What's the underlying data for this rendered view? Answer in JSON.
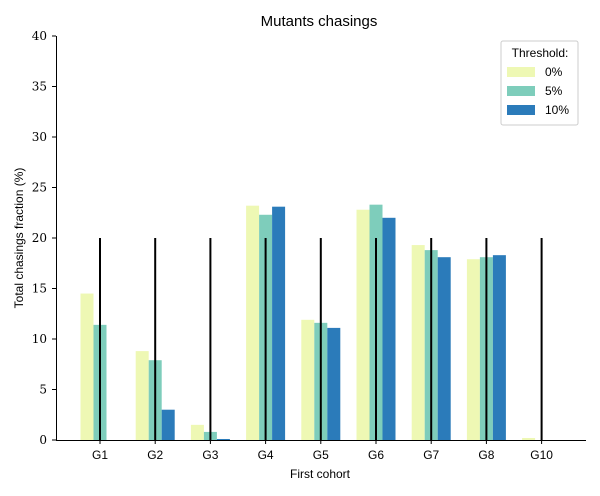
{
  "chart_data": {
    "type": "bar",
    "title": "Mutants chasings",
    "xlabel": "First cohort",
    "ylabel": "Total chasings fraction (%)",
    "ylim": [
      0,
      40
    ],
    "yticks": [
      "0",
      "5",
      "10",
      "15",
      "20",
      "25",
      "30",
      "35",
      "40"
    ],
    "categories": [
      "G1",
      "G2",
      "G3",
      "G4",
      "G5",
      "G6",
      "G7",
      "G8",
      "G10"
    ],
    "legend": {
      "title": "Threshold:",
      "placement": "top-right"
    },
    "series": [
      {
        "name": "0%",
        "color": "#eef8b4",
        "values": [
          14.5,
          8.8,
          1.5,
          23.2,
          11.9,
          22.8,
          19.3,
          17.9,
          0.2
        ]
      },
      {
        "name": "5%",
        "color": "#7ecdbb",
        "values": [
          11.4,
          7.9,
          0.8,
          22.3,
          11.6,
          23.3,
          18.8,
          18.1,
          0
        ]
      },
      {
        "name": "10%",
        "color": "#2b7bba",
        "values": [
          0,
          3.0,
          0.1,
          23.1,
          11.1,
          22.0,
          18.1,
          18.3,
          0
        ]
      }
    ],
    "reference_line": {
      "value": 20,
      "color": "#000000"
    },
    "grid": false
  }
}
